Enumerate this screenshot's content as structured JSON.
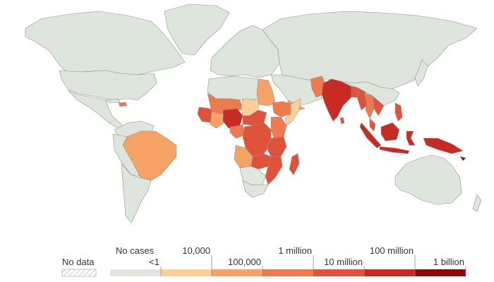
{
  "map": {
    "colors": {
      "ocean": "#ffffff",
      "no_cases": "#dde5dc",
      "border": "#8f968f",
      "under_1": "#e2e6df",
      "bin_1": "#fbcf97",
      "bin_2": "#f6a266",
      "bin_3": "#ee7a4d",
      "bin_4": "#e1523a",
      "bin_5": "#c92b23",
      "bin_6": "#8b0a0a"
    }
  },
  "legend": {
    "no_data_label": "No data",
    "no_cases_label": "No cases",
    "tick_labels": [
      "<1",
      "10,000",
      "100,000",
      "1 million",
      "10 million",
      "100 million",
      "1 billion"
    ],
    "bin_colors": [
      "#e2e6df",
      "#fbcf97",
      "#f6a266",
      "#ee7a4d",
      "#e1523a",
      "#c92b23",
      "#8b0a0a"
    ]
  }
}
